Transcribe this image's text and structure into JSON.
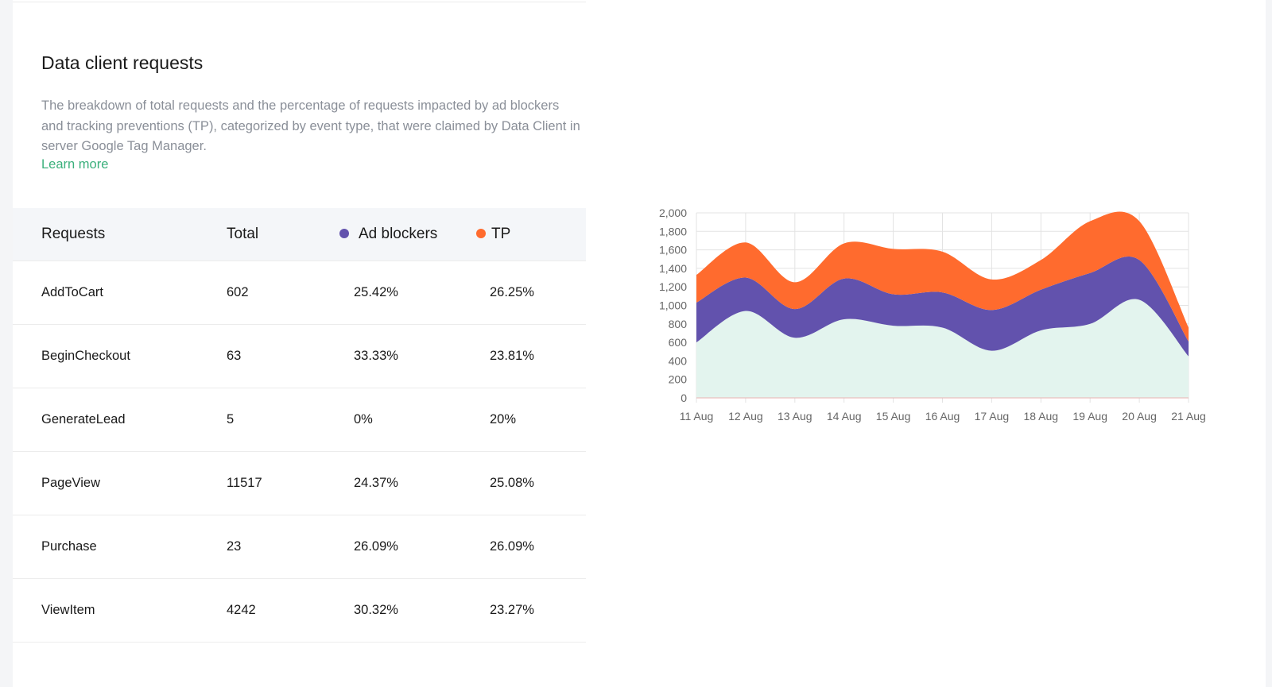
{
  "section": {
    "title": "Data client requests",
    "description": "The breakdown of total requests and the percentage of requests impacted by ad blockers and tracking preventions (TP), categorized by event type, that were claimed by Data Client in server Google Tag Manager.",
    "learn_more": "Learn more"
  },
  "table": {
    "headers": [
      "Requests",
      "Total",
      "Ad blockers",
      "TP"
    ],
    "rows": [
      [
        "AddToCart",
        "602",
        "25.42%",
        "26.25%"
      ],
      [
        "BeginCheckout",
        "63",
        "33.33%",
        "23.81%"
      ],
      [
        "GenerateLead",
        "5",
        "0%",
        "20%"
      ],
      [
        "PageView",
        "11517",
        "24.37%",
        "25.08%"
      ],
      [
        "Purchase",
        "23",
        "26.09%",
        "26.09%"
      ],
      [
        "ViewItem",
        "4242",
        "30.32%",
        "23.27%"
      ]
    ]
  },
  "colors": {
    "ad_blockers": "#6252ad",
    "tp": "#ff6b2e",
    "base_fill": "#e3f4ee",
    "link": "#3bb07c"
  },
  "chart_data": {
    "type": "area",
    "stacked": true,
    "x": [
      "11 Aug",
      "12 Aug",
      "13 Aug",
      "14 Aug",
      "15 Aug",
      "16 Aug",
      "17 Aug",
      "18 Aug",
      "19 Aug",
      "20 Aug",
      "21 Aug"
    ],
    "ylim": [
      0,
      2000
    ],
    "yticks": [
      "0",
      "200",
      "400",
      "600",
      "800",
      "1,000",
      "1,200",
      "1,400",
      "1,600",
      "1,800",
      "2,000"
    ],
    "grid": true,
    "series": [
      {
        "values": [
          600,
          940,
          650,
          850,
          780,
          760,
          510,
          730,
          800,
          1060,
          450
        ],
        "color": "#e3f4ee"
      },
      {
        "values": [
          430,
          360,
          310,
          440,
          340,
          380,
          440,
          440,
          550,
          430,
          160
        ],
        "color": "#6252ad"
      },
      {
        "values": [
          300,
          380,
          290,
          380,
          490,
          440,
          330,
          320,
          560,
          420,
          150
        ],
        "color": "#ff6b2e"
      }
    ]
  }
}
